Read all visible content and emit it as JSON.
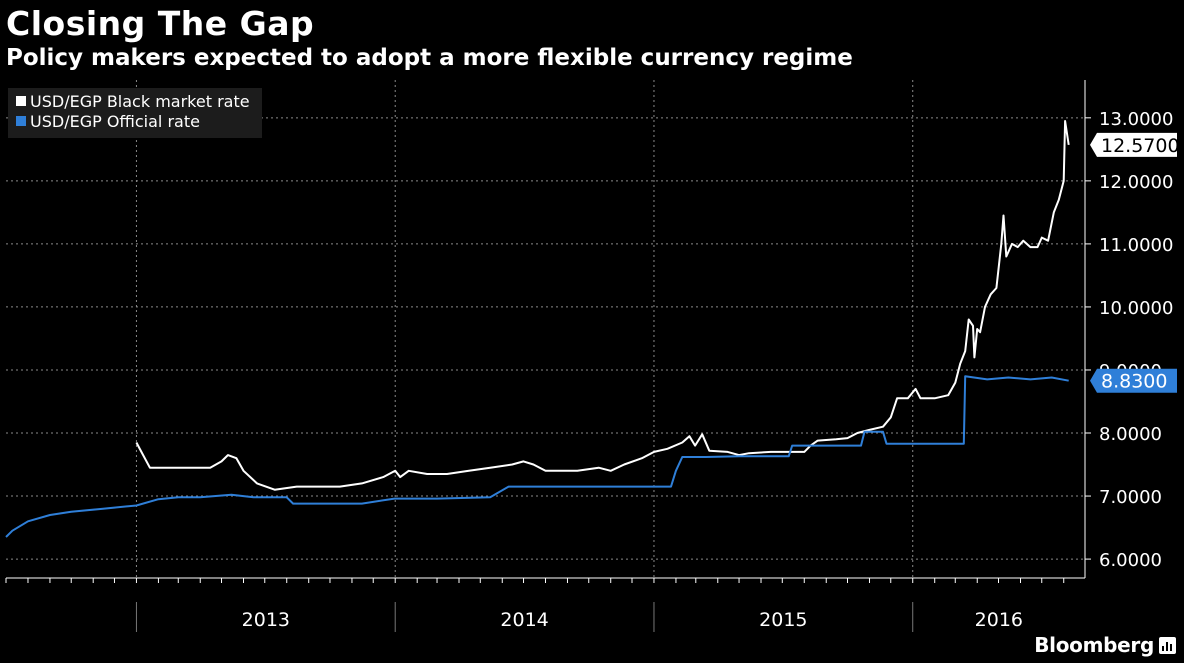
{
  "title": "Closing The Gap",
  "subtitle": "Policy makers expected to adopt a more flexible currency regime",
  "brand": "Bloomberg",
  "legend": [
    {
      "label": "USD/EGP Black market rate",
      "color": "#ffffff"
    },
    {
      "label": "USD/EGP Official rate",
      "color": "#2f7fd8"
    }
  ],
  "chart_data": {
    "type": "line",
    "title": "Closing The Gap",
    "subtitle": "Policy makers expected to adopt a more flexible currency regime",
    "xlabel": "",
    "ylabel": "",
    "ylim": [
      5.7,
      13.6
    ],
    "xlim": [
      "2012-07-01",
      "2016-08-31"
    ],
    "y_ticks": [
      6.0,
      7.0,
      8.0,
      9.0,
      10.0,
      11.0,
      12.0,
      13.0
    ],
    "y_tick_labels": [
      "6.0000",
      "7.0000",
      "8.0000",
      "9.0000",
      "10.0000",
      "11.0000",
      "12.0000",
      "13.0000"
    ],
    "x_categories": [
      "2013",
      "2014",
      "2015",
      "2016"
    ],
    "grid": true,
    "legend_position": "top-left",
    "series": [
      {
        "name": "USD/EGP Black market rate",
        "color": "#ffffff",
        "last_value_label": "12.5700",
        "points": [
          [
            "2013-01-01",
            7.85
          ],
          [
            "2013-01-08",
            7.7
          ],
          [
            "2013-01-20",
            7.45
          ],
          [
            "2013-02-15",
            7.45
          ],
          [
            "2013-03-15",
            7.45
          ],
          [
            "2013-04-15",
            7.45
          ],
          [
            "2013-05-01",
            7.55
          ],
          [
            "2013-05-10",
            7.65
          ],
          [
            "2013-05-22",
            7.6
          ],
          [
            "2013-06-01",
            7.4
          ],
          [
            "2013-06-20",
            7.2
          ],
          [
            "2013-07-15",
            7.1
          ],
          [
            "2013-08-15",
            7.15
          ],
          [
            "2013-09-15",
            7.15
          ],
          [
            "2013-10-15",
            7.15
          ],
          [
            "2013-11-15",
            7.2
          ],
          [
            "2013-12-15",
            7.3
          ],
          [
            "2014-01-01",
            7.4
          ],
          [
            "2014-01-08",
            7.3
          ],
          [
            "2014-01-20",
            7.4
          ],
          [
            "2014-02-15",
            7.35
          ],
          [
            "2014-03-15",
            7.35
          ],
          [
            "2014-04-15",
            7.4
          ],
          [
            "2014-05-15",
            7.45
          ],
          [
            "2014-06-15",
            7.5
          ],
          [
            "2014-07-01",
            7.55
          ],
          [
            "2014-07-15",
            7.5
          ],
          [
            "2014-08-01",
            7.4
          ],
          [
            "2014-08-15",
            7.4
          ],
          [
            "2014-09-15",
            7.4
          ],
          [
            "2014-10-15",
            7.45
          ],
          [
            "2014-11-01",
            7.4
          ],
          [
            "2014-11-20",
            7.5
          ],
          [
            "2014-12-15",
            7.6
          ],
          [
            "2015-01-01",
            7.7
          ],
          [
            "2015-01-20",
            7.75
          ],
          [
            "2015-02-10",
            7.85
          ],
          [
            "2015-02-20",
            7.95
          ],
          [
            "2015-02-28",
            7.8
          ],
          [
            "2015-03-10",
            7.98
          ],
          [
            "2015-03-20",
            7.72
          ],
          [
            "2015-04-15",
            7.7
          ],
          [
            "2015-05-01",
            7.65
          ],
          [
            "2015-05-15",
            7.68
          ],
          [
            "2015-06-15",
            7.7
          ],
          [
            "2015-07-15",
            7.7
          ],
          [
            "2015-08-01",
            7.7
          ],
          [
            "2015-08-10",
            7.8
          ],
          [
            "2015-08-20",
            7.88
          ],
          [
            "2015-09-15",
            7.9
          ],
          [
            "2015-10-01",
            7.92
          ],
          [
            "2015-10-15",
            8.0
          ],
          [
            "2015-11-01",
            8.05
          ],
          [
            "2015-11-20",
            8.1
          ],
          [
            "2015-12-01",
            8.25
          ],
          [
            "2015-12-10",
            8.55
          ],
          [
            "2015-12-25",
            8.55
          ],
          [
            "2016-01-05",
            8.7
          ],
          [
            "2016-01-12",
            8.55
          ],
          [
            "2016-02-01",
            8.55
          ],
          [
            "2016-02-20",
            8.6
          ],
          [
            "2016-03-01",
            8.8
          ],
          [
            "2016-03-08",
            9.1
          ],
          [
            "2016-03-15",
            9.3
          ],
          [
            "2016-03-20",
            9.8
          ],
          [
            "2016-03-26",
            9.7
          ],
          [
            "2016-03-28",
            9.2
          ],
          [
            "2016-04-01",
            9.65
          ],
          [
            "2016-04-05",
            9.6
          ],
          [
            "2016-04-12",
            10.0
          ],
          [
            "2016-04-20",
            10.2
          ],
          [
            "2016-04-28",
            10.3
          ],
          [
            "2016-05-05",
            11.0
          ],
          [
            "2016-05-08",
            11.45
          ],
          [
            "2016-05-12",
            10.8
          ],
          [
            "2016-05-20",
            11.0
          ],
          [
            "2016-05-28",
            10.95
          ],
          [
            "2016-06-05",
            11.05
          ],
          [
            "2016-06-15",
            10.95
          ],
          [
            "2016-06-25",
            10.95
          ],
          [
            "2016-07-01",
            11.1
          ],
          [
            "2016-07-10",
            11.05
          ],
          [
            "2016-07-18",
            11.5
          ],
          [
            "2016-07-25",
            11.7
          ],
          [
            "2016-08-01",
            12.0
          ],
          [
            "2016-08-03",
            12.95
          ],
          [
            "2016-08-08",
            12.57
          ]
        ]
      },
      {
        "name": "USD/EGP Official rate",
        "color": "#2f7fd8",
        "last_value_label": "8.8300",
        "points": [
          [
            "2012-07-01",
            6.35
          ],
          [
            "2012-07-10",
            6.45
          ],
          [
            "2012-08-01",
            6.6
          ],
          [
            "2012-09-01",
            6.7
          ],
          [
            "2012-10-01",
            6.75
          ],
          [
            "2012-11-15",
            6.8
          ],
          [
            "2013-01-01",
            6.85
          ],
          [
            "2013-02-01",
            6.95
          ],
          [
            "2013-03-01",
            6.98
          ],
          [
            "2013-04-01",
            6.98
          ],
          [
            "2013-05-15",
            7.02
          ],
          [
            "2013-06-15",
            6.98
          ],
          [
            "2013-08-01",
            6.98
          ],
          [
            "2013-08-10",
            6.88
          ],
          [
            "2013-09-15",
            6.88
          ],
          [
            "2013-11-15",
            6.88
          ],
          [
            "2013-12-31",
            6.96
          ],
          [
            "2014-03-01",
            6.96
          ],
          [
            "2014-05-15",
            6.98
          ],
          [
            "2014-06-10",
            7.15
          ],
          [
            "2014-08-01",
            7.15
          ],
          [
            "2014-10-01",
            7.15
          ],
          [
            "2014-12-01",
            7.15
          ],
          [
            "2015-01-01",
            7.15
          ],
          [
            "2015-01-25",
            7.15
          ],
          [
            "2015-02-01",
            7.4
          ],
          [
            "2015-02-10",
            7.62
          ],
          [
            "2015-03-15",
            7.62
          ],
          [
            "2015-05-01",
            7.63
          ],
          [
            "2015-06-15",
            7.63
          ],
          [
            "2015-07-10",
            7.63
          ],
          [
            "2015-07-15",
            7.8
          ],
          [
            "2015-09-01",
            7.8
          ],
          [
            "2015-10-20",
            7.8
          ],
          [
            "2015-10-25",
            8.02
          ],
          [
            "2015-11-20",
            8.02
          ],
          [
            "2015-11-25",
            7.83
          ],
          [
            "2016-01-15",
            7.83
          ],
          [
            "2016-03-13",
            7.83
          ],
          [
            "2016-03-15",
            8.9
          ],
          [
            "2016-04-15",
            8.85
          ],
          [
            "2016-05-15",
            8.88
          ],
          [
            "2016-06-15",
            8.85
          ],
          [
            "2016-07-15",
            8.88
          ],
          [
            "2016-08-08",
            8.83
          ]
        ]
      }
    ]
  }
}
